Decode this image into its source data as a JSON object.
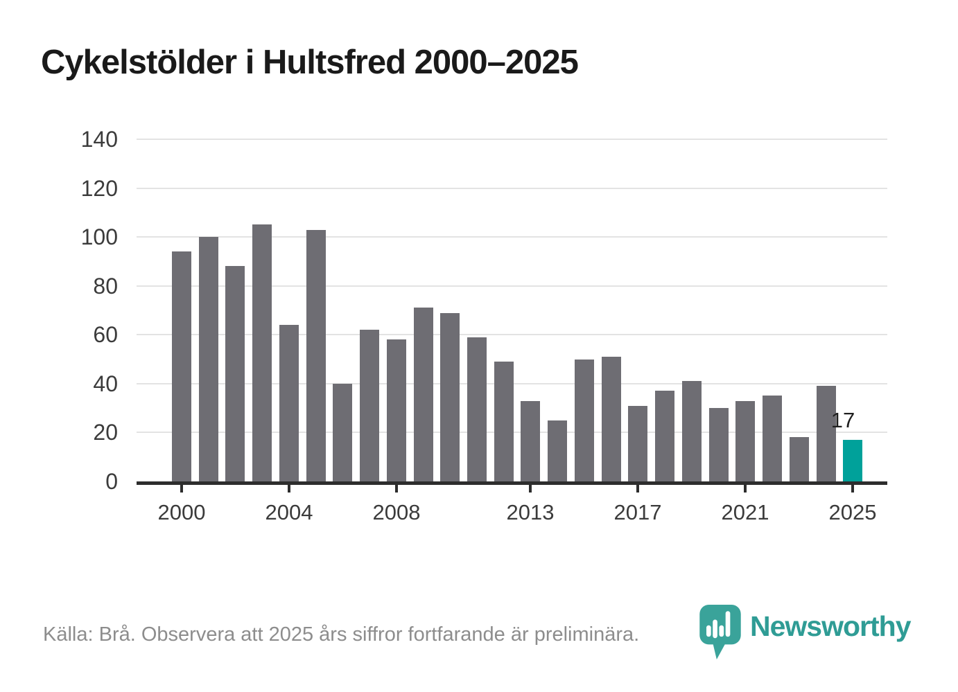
{
  "title": "Cykelstölder i Hultsfred 2000–2025",
  "source_note": "Källa: Brå. Observera att 2025 års siffror fortfarande är preliminära.",
  "branding": {
    "wordmark": "Newsworthy",
    "icon": "newsworthy-pin-barchart-icon"
  },
  "colors": {
    "bar": "#6e6d73",
    "bar_highlight": "#00a19a",
    "gridline": "#e3e3e3",
    "axis": "#2d2d2d",
    "title_text": "#1a1a1a",
    "tick_text": "#3b3b3b",
    "source_text": "#8d8d8d",
    "logo_teal": "#3aa39a",
    "wordmark_teal": "#2f9c95"
  },
  "chart_data": {
    "type": "bar",
    "title": "Cykelstölder i Hultsfred 2000–2025",
    "xlabel": "",
    "ylabel": "",
    "x": [
      2000,
      2001,
      2002,
      2003,
      2004,
      2005,
      2006,
      2007,
      2008,
      2009,
      2010,
      2011,
      2012,
      2013,
      2014,
      2015,
      2016,
      2017,
      2018,
      2019,
      2020,
      2021,
      2022,
      2023,
      2024,
      2025
    ],
    "values": [
      94,
      100,
      88,
      105,
      64,
      103,
      40,
      62,
      58,
      71,
      69,
      59,
      49,
      33,
      25,
      50,
      51,
      31,
      37,
      41,
      30,
      33,
      35,
      18,
      39,
      17
    ],
    "highlight_x": 2025,
    "highlight_label": "17",
    "xticks": [
      2000,
      2004,
      2008,
      2013,
      2017,
      2021,
      2025
    ],
    "yticks": [
      0,
      20,
      40,
      60,
      80,
      100,
      120,
      140
    ],
    "ylim": [
      0,
      140
    ],
    "grid": true,
    "legend": "none"
  }
}
